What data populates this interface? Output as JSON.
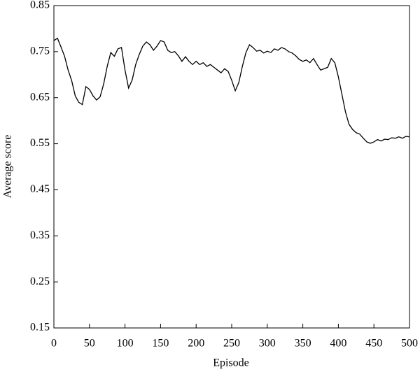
{
  "chart_data": {
    "type": "line",
    "xlabel": "Episode",
    "ylabel": "Average score",
    "x": [
      0,
      5,
      10,
      15,
      20,
      25,
      30,
      35,
      40,
      45,
      50,
      55,
      60,
      65,
      70,
      75,
      80,
      85,
      90,
      95,
      100,
      105,
      110,
      115,
      120,
      125,
      130,
      135,
      140,
      145,
      150,
      155,
      160,
      165,
      170,
      175,
      180,
      185,
      190,
      195,
      200,
      205,
      210,
      215,
      220,
      225,
      230,
      235,
      240,
      245,
      250,
      255,
      260,
      265,
      270,
      275,
      280,
      285,
      290,
      295,
      300,
      305,
      310,
      315,
      320,
      325,
      330,
      335,
      340,
      345,
      350,
      355,
      360,
      365,
      370,
      375,
      380,
      385,
      390,
      395,
      400,
      405,
      410,
      415,
      420,
      425,
      430,
      435,
      440,
      445,
      450,
      455,
      460,
      465,
      470,
      475,
      480,
      485,
      490,
      495,
      500
    ],
    "series": [
      {
        "color": "#000000",
        "values": [
          0.774,
          0.779,
          0.76,
          0.74,
          0.71,
          0.687,
          0.654,
          0.64,
          0.635,
          0.674,
          0.668,
          0.654,
          0.645,
          0.652,
          0.68,
          0.718,
          0.748,
          0.74,
          0.756,
          0.759,
          0.71,
          0.671,
          0.688,
          0.722,
          0.744,
          0.762,
          0.771,
          0.765,
          0.753,
          0.762,
          0.774,
          0.771,
          0.753,
          0.748,
          0.75,
          0.741,
          0.729,
          0.739,
          0.729,
          0.722,
          0.729,
          0.722,
          0.726,
          0.718,
          0.722,
          0.716,
          0.71,
          0.704,
          0.713,
          0.707,
          0.688,
          0.665,
          0.683,
          0.718,
          0.748,
          0.765,
          0.759,
          0.751,
          0.753,
          0.747,
          0.751,
          0.748,
          0.756,
          0.753,
          0.759,
          0.756,
          0.75,
          0.747,
          0.741,
          0.733,
          0.729,
          0.732,
          0.726,
          0.735,
          0.722,
          0.71,
          0.713,
          0.716,
          0.735,
          0.726,
          0.695,
          0.657,
          0.619,
          0.592,
          0.581,
          0.574,
          0.571,
          0.562,
          0.554,
          0.551,
          0.554,
          0.559,
          0.556,
          0.56,
          0.559,
          0.563,
          0.562,
          0.565,
          0.562,
          0.566,
          0.565
        ]
      }
    ],
    "xlim": [
      0,
      500
    ],
    "xticks": [
      0,
      50,
      100,
      150,
      200,
      250,
      300,
      350,
      400,
      450,
      500
    ],
    "ylim": [
      0.15,
      0.85
    ],
    "yticks": [
      0.15,
      0.25,
      0.35,
      0.45,
      0.55,
      0.65,
      0.75,
      0.85
    ],
    "grid": false
  }
}
